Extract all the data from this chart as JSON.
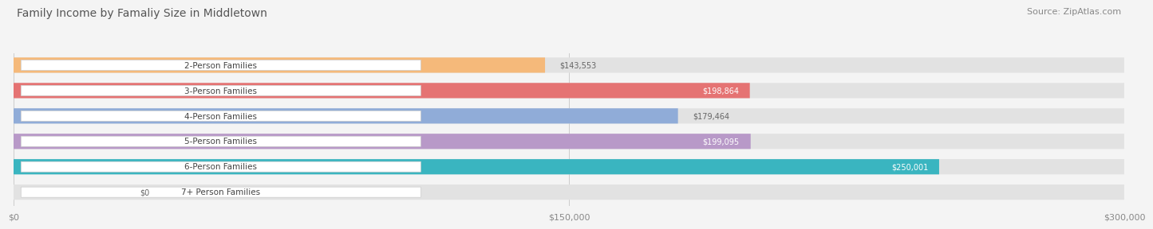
{
  "title": "Family Income by Famaliy Size in Middletown",
  "source": "Source: ZipAtlas.com",
  "categories": [
    "2-Person Families",
    "3-Person Families",
    "4-Person Families",
    "5-Person Families",
    "6-Person Families",
    "7+ Person Families"
  ],
  "values": [
    143553,
    198864,
    179464,
    199095,
    250001,
    0
  ],
  "bar_colors": [
    "#f5b97a",
    "#e57373",
    "#90acd8",
    "#b899c8",
    "#3ab5c0",
    "#b0b8e8"
  ],
  "value_labels": [
    "$143,553",
    "$198,864",
    "$179,464",
    "$199,095",
    "$250,001",
    "$0"
  ],
  "value_inside": [
    false,
    true,
    false,
    true,
    true,
    false
  ],
  "xmax": 300000,
  "xticks": [
    0,
    150000,
    300000
  ],
  "xtick_labels": [
    "$0",
    "$150,000",
    "$300,000"
  ],
  "background_color": "#f4f4f4",
  "bar_bg_color": "#e2e2e2",
  "title_fontsize": 10,
  "source_fontsize": 8,
  "label_fontsize": 7.5,
  "value_fontsize": 7
}
